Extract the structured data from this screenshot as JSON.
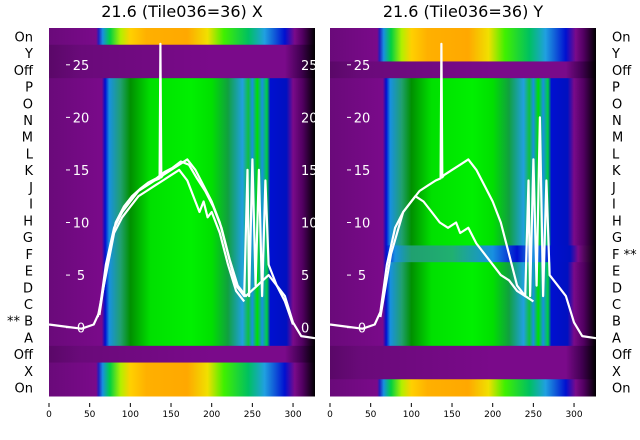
{
  "chart_data": [
    {
      "type": "heatmap",
      "title": "21.6 (Tile036=36) X",
      "row_labels": [
        "On",
        "Y",
        "Off",
        "P",
        "O",
        "N",
        "M",
        "L",
        "K",
        "J",
        "I",
        "H",
        "G",
        "F",
        "E",
        "D",
        "C",
        "** B",
        "A",
        "Off",
        "X",
        "On"
      ],
      "row_kinds": [
        "on",
        "off",
        "off",
        "tile",
        "tile",
        "tile",
        "tile",
        "tile",
        "tile",
        "tile",
        "tile",
        "tile",
        "tile",
        "tile",
        "tile",
        "tile",
        "tile",
        "tile",
        "tile",
        "off",
        "on",
        "on"
      ],
      "xticks": [
        0,
        50,
        100,
        150,
        200,
        250,
        300
      ],
      "xlim": [
        0,
        327
      ],
      "overlay_yticks": [
        0,
        5,
        10,
        15,
        20,
        25
      ],
      "overlay_ylim": [
        -6.5,
        28.5
      ],
      "lines": [
        {
          "x": [
            0,
            20,
            40,
            55,
            62,
            70,
            80,
            90,
            100,
            110,
            120,
            130,
            136,
            137,
            138,
            140,
            150,
            160,
            170,
            180,
            190,
            200,
            210,
            220,
            230,
            240,
            244,
            246,
            250,
            254,
            258,
            262,
            266,
            270,
            280,
            290,
            300,
            310,
            327
          ],
          "y": [
            0.3,
            0.1,
            -0.1,
            0.3,
            1.5,
            6,
            9.5,
            11,
            12,
            13,
            13.5,
            14,
            14.2,
            27,
            14.3,
            14.5,
            15,
            15.5,
            16,
            15,
            13.5,
            12,
            10,
            7,
            4,
            3,
            15,
            3,
            16,
            4,
            15,
            3,
            14,
            6,
            4,
            3,
            0.5,
            -0.8,
            -1
          ]
        },
        {
          "x": [
            60,
            70,
            80,
            90,
            100,
            110,
            120,
            130,
            140,
            150,
            160,
            170,
            180,
            185,
            190,
            195,
            200,
            210,
            220,
            230,
            240
          ],
          "y": [
            1,
            5,
            9,
            10.5,
            11.5,
            12.5,
            13,
            13.5,
            14,
            14.5,
            15,
            14,
            12,
            11,
            12,
            10.5,
            11,
            9,
            6,
            3.5,
            2.5
          ]
        },
        {
          "x": [
            62,
            72,
            82,
            92,
            102,
            112,
            122,
            132,
            142,
            152,
            162,
            172,
            182,
            192,
            202,
            212,
            222,
            232,
            242,
            270,
            280,
            290,
            300
          ],
          "y": [
            1.2,
            6.5,
            10,
            11.5,
            12.5,
            13.2,
            13.8,
            14.2,
            14.8,
            15.2,
            15.8,
            15.5,
            14.2,
            13,
            11.5,
            9.5,
            6.5,
            4,
            3,
            5,
            4,
            2.5,
            0.3
          ]
        }
      ]
    },
    {
      "type": "heatmap",
      "title": "21.6 (Tile036=36) Y",
      "row_labels": [
        "On",
        "Y",
        "Off",
        "P",
        "O",
        "N",
        "M",
        "L",
        "K",
        "J",
        "I",
        "H",
        "G",
        "F **",
        "E",
        "D",
        "C",
        "B",
        "A",
        "Off",
        "X",
        "On"
      ],
      "row_kinds": [
        "on",
        "on",
        "off",
        "tile",
        "tile",
        "tile",
        "tile",
        "tile",
        "tile",
        "tile",
        "tile",
        "tile",
        "tile",
        "bad",
        "tile",
        "tile",
        "tile",
        "tile",
        "tile",
        "off",
        "off",
        "on"
      ],
      "xticks": [
        0,
        50,
        100,
        150,
        200,
        250,
        300
      ],
      "xlim": [
        0,
        327
      ],
      "overlay_yticks": [
        0,
        5,
        10,
        15,
        20,
        25
      ],
      "overlay_ylim": [
        -6.5,
        28.5
      ],
      "lines": [
        {
          "x": [
            0,
            20,
            40,
            55,
            62,
            70,
            80,
            90,
            100,
            110,
            120,
            130,
            136,
            137,
            138,
            140,
            150,
            160,
            170,
            180,
            190,
            200,
            210,
            220,
            230,
            240,
            244,
            246,
            250,
            254,
            258,
            262,
            266,
            270,
            280,
            290,
            300,
            310,
            327
          ],
          "y": [
            0.3,
            0.1,
            -0.1,
            0.3,
            1.5,
            6,
            9.5,
            11,
            12,
            13,
            13.5,
            14,
            14.2,
            27,
            14.3,
            14.5,
            15,
            15.5,
            16,
            15,
            13.5,
            12,
            10,
            7,
            4,
            3,
            14,
            3,
            16,
            4,
            20,
            3,
            14,
            5,
            4,
            3,
            0.5,
            -0.8,
            -1
          ]
        },
        {
          "x": [
            62,
            75,
            90,
            105,
            115,
            125,
            135,
            145,
            155,
            160,
            170,
            180,
            190,
            200,
            210,
            220,
            230,
            240,
            250
          ],
          "y": [
            1,
            7,
            11,
            12.5,
            12,
            11,
            10,
            9.5,
            10,
            9,
            9.5,
            8,
            7,
            6,
            5,
            4.5,
            3.5,
            3,
            2.5
          ]
        }
      ]
    }
  ],
  "colors": {
    "off": "#6a0a7a",
    "bg": "#7a0a8a"
  }
}
